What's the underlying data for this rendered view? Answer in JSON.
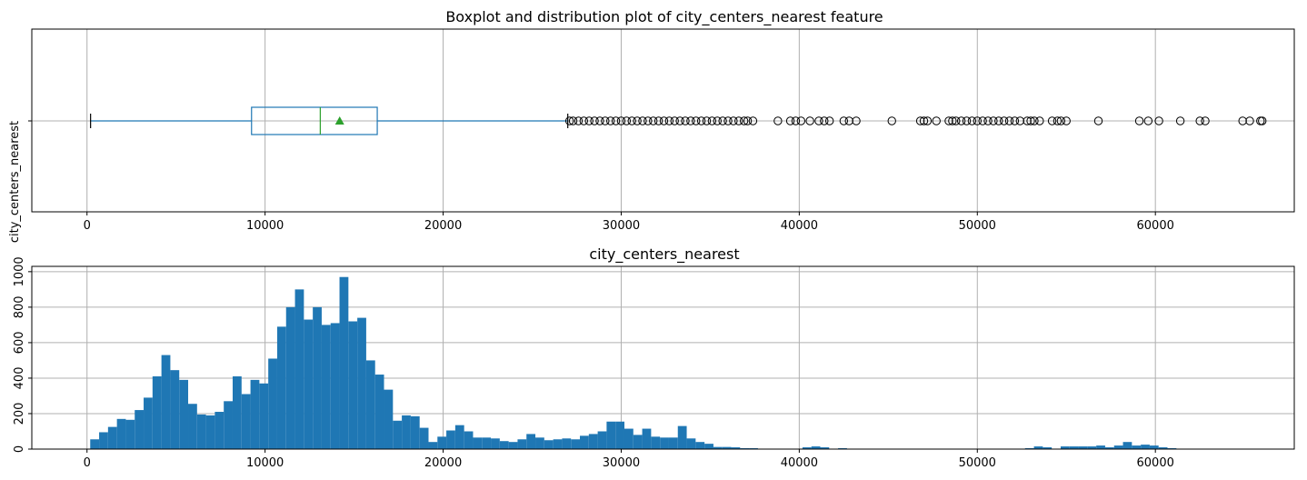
{
  "chart_data": [
    {
      "type": "box",
      "title": "Boxplot and distribution plot of city_centers_nearest feature",
      "ylabel": "city_centers_nearest",
      "xlabel": "",
      "xlim": [
        -3100,
        67800
      ],
      "xticks": [
        0,
        10000,
        20000,
        30000,
        40000,
        50000,
        60000
      ],
      "grid": true,
      "box": {
        "whisker_low": 200,
        "q1": 9240,
        "median": 13100,
        "q3": 16300,
        "whisker_high": 27000,
        "mean": 14190
      },
      "outliers": [
        27100,
        27300,
        27600,
        27900,
        28200,
        28500,
        28800,
        29100,
        29400,
        29700,
        30000,
        30300,
        30600,
        30900,
        31200,
        31500,
        31800,
        32100,
        32400,
        32700,
        33000,
        33300,
        33600,
        33900,
        34200,
        34500,
        34800,
        35100,
        35400,
        35700,
        36000,
        36300,
        36600,
        36900,
        37100,
        37400,
        38800,
        39500,
        39800,
        40100,
        40600,
        41100,
        41400,
        41700,
        42500,
        42800,
        43200,
        45200,
        46800,
        47000,
        47200,
        47700,
        48400,
        48600,
        48800,
        49100,
        49400,
        49700,
        50000,
        50300,
        50600,
        50900,
        51200,
        51500,
        51800,
        52100,
        52400,
        52800,
        53000,
        53200,
        53500,
        54200,
        54500,
        54700,
        55000,
        56800,
        59100,
        59600,
        60200,
        61400,
        62500,
        62800,
        64900,
        65300,
        65900,
        66000
      ],
      "colors": {
        "box": "#1f77b4",
        "median": "#2ca02c",
        "mean": "#2ca02c",
        "outlier": "#000000",
        "grid": "#b0b0b0"
      }
    },
    {
      "type": "histogram",
      "title": "city_centers_nearest",
      "xlabel": "",
      "ylabel": "",
      "xlim": [
        -3100,
        67800
      ],
      "ylim": [
        0,
        1030
      ],
      "xticks": [
        0,
        10000,
        20000,
        30000,
        40000,
        50000,
        60000
      ],
      "yticks": [
        0,
        200,
        400,
        600,
        800,
        1000
      ],
      "grid": true,
      "bin_start": 180,
      "bin_width": 500,
      "counts": [
        55,
        95,
        125,
        170,
        165,
        220,
        290,
        410,
        530,
        445,
        390,
        255,
        195,
        190,
        210,
        270,
        410,
        310,
        390,
        370,
        510,
        690,
        800,
        900,
        730,
        800,
        700,
        710,
        970,
        720,
        740,
        500,
        420,
        335,
        160,
        190,
        185,
        120,
        40,
        70,
        105,
        135,
        100,
        65,
        65,
        60,
        45,
        40,
        55,
        85,
        65,
        50,
        55,
        60,
        55,
        75,
        85,
        100,
        155,
        155,
        115,
        80,
        115,
        70,
        65,
        65,
        130,
        60,
        40,
        30,
        12,
        12,
        10,
        5,
        5,
        0,
        0,
        0,
        0,
        0,
        10,
        15,
        10,
        0,
        5,
        0,
        0,
        0,
        0,
        0,
        0,
        0,
        0,
        0,
        0,
        0,
        0,
        0,
        0,
        0,
        0,
        0,
        0,
        0,
        0,
        5,
        15,
        10,
        0,
        15,
        15,
        15,
        15,
        20,
        10,
        20,
        40,
        20,
        25,
        20,
        10,
        5,
        0,
        0,
        0,
        0,
        0,
        0,
        0,
        0,
        0,
        0,
        0,
        0,
        0,
        0,
        0,
        0,
        0,
        0,
        0,
        0,
        0,
        0,
        0,
        0,
        0,
        0,
        0,
        0,
        0,
        0,
        0,
        0,
        0,
        0,
        0,
        0,
        0,
        0,
        0,
        0,
        0,
        0,
        0,
        0,
        0,
        0,
        0,
        0,
        0,
        0,
        0,
        0,
        0,
        0,
        0,
        0,
        0,
        0,
        0,
        0,
        0,
        0,
        0,
        0,
        0,
        0,
        0,
        0,
        0,
        0,
        0,
        0,
        0,
        0,
        0,
        0,
        0,
        0,
        0,
        0,
        0,
        0,
        0,
        0,
        0,
        0,
        0,
        0,
        0,
        0,
        0,
        0,
        0,
        0,
        0,
        0,
        0,
        0,
        0,
        0,
        0,
        0,
        0,
        0,
        0,
        0,
        0,
        0
      ],
      "colors": {
        "bar": "#1f77b4",
        "grid": "#b0b0b0"
      }
    }
  ]
}
